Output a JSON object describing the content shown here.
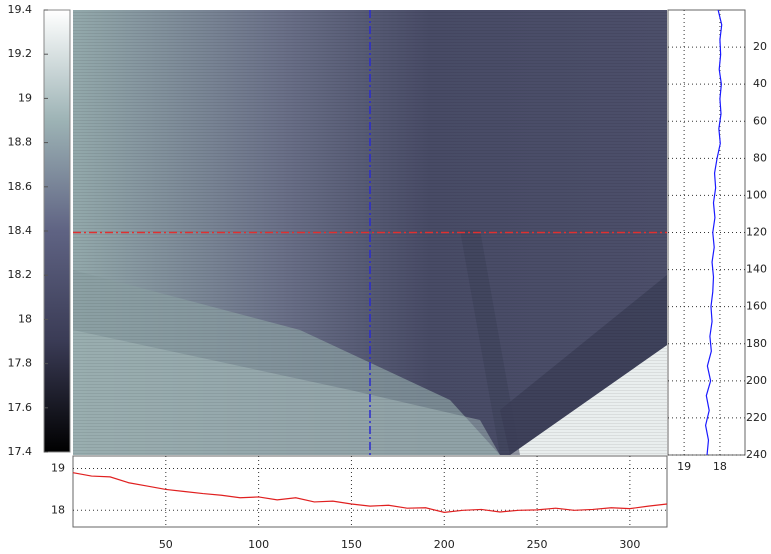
{
  "chart_data": [
    {
      "type": "colorbar",
      "ylim": [
        17.4,
        19.4
      ],
      "yticks": [
        17.4,
        17.6,
        17.8,
        18,
        18.2,
        18.4,
        18.6,
        18.8,
        19,
        19.2,
        19.4
      ],
      "colormap": [
        "#000000",
        "#3a3b55",
        "#5f6383",
        "#9db3b5",
        "#ffffff"
      ]
    },
    {
      "type": "image",
      "xlim": [
        0,
        320
      ],
      "ylim": [
        240,
        0
      ],
      "crosshair": {
        "x": 160,
        "y": 120,
        "x_color": "#2b2bd0",
        "y_color": "#e03030"
      }
    },
    {
      "type": "line",
      "orientation": "vertical",
      "color": "#1a1aff",
      "xlim": [
        19.45,
        17.3
      ],
      "xticks": [
        19,
        18
      ],
      "ylim": [
        240,
        0
      ],
      "yticks": [
        20,
        40,
        60,
        80,
        100,
        120,
        140,
        160,
        180,
        200,
        220,
        240
      ],
      "grid": true,
      "y": [
        0,
        8,
        16,
        24,
        32,
        40,
        48,
        56,
        64,
        72,
        80,
        88,
        96,
        104,
        112,
        120,
        128,
        136,
        144,
        152,
        160,
        168,
        176,
        184,
        192,
        200,
        208,
        216,
        224,
        232,
        240
      ],
      "values": [
        18.05,
        17.95,
        18.0,
        17.98,
        18.02,
        17.96,
        18.0,
        17.97,
        18.03,
        17.99,
        18.08,
        18.15,
        18.12,
        18.18,
        18.14,
        18.2,
        18.16,
        18.22,
        18.18,
        18.2,
        18.25,
        18.22,
        18.28,
        18.24,
        18.35,
        18.26,
        18.38,
        18.3,
        18.4,
        18.32,
        18.36
      ]
    },
    {
      "type": "line",
      "orientation": "horizontal",
      "color": "#e02020",
      "xlim": [
        0,
        320
      ],
      "xticks": [
        50,
        100,
        150,
        200,
        250,
        300
      ],
      "ylim": [
        17.6,
        19.3
      ],
      "yticks": [
        18,
        19
      ],
      "grid": true,
      "x": [
        0,
        10,
        20,
        30,
        40,
        50,
        60,
        70,
        80,
        90,
        100,
        110,
        120,
        130,
        140,
        150,
        160,
        170,
        180,
        190,
        200,
        210,
        220,
        230,
        240,
        250,
        260,
        270,
        280,
        290,
        300,
        310,
        320
      ],
      "values": [
        18.9,
        18.82,
        18.8,
        18.66,
        18.58,
        18.5,
        18.45,
        18.4,
        18.36,
        18.3,
        18.32,
        18.25,
        18.3,
        18.2,
        18.22,
        18.15,
        18.1,
        18.12,
        18.05,
        18.06,
        17.95,
        18.0,
        18.02,
        17.96,
        18.0,
        18.01,
        18.05,
        18.0,
        18.02,
        18.06,
        18.04,
        18.1,
        18.15
      ]
    }
  ]
}
